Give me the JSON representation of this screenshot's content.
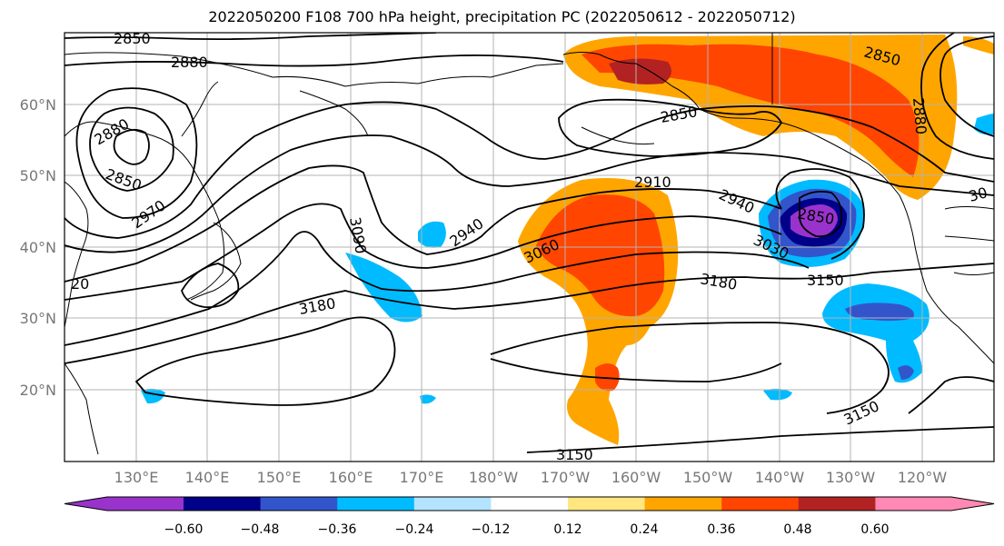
{
  "title": "2022050200 F108 700 hPa height, precipitation PC (2022050612 - 2022050712)",
  "lat_labels": [
    "60°N",
    "50°N",
    "40°N",
    "30°N",
    "20°N"
  ],
  "lon_labels": [
    "130°E",
    "140°E",
    "150°E",
    "160°E",
    "170°E",
    "180°W",
    "170°W",
    "160°W",
    "150°W",
    "140°W",
    "130°W",
    "120°W"
  ],
  "colorbar": {
    "ticks": [
      "−0.60",
      "−0.48",
      "−0.36",
      "−0.24",
      "−0.12",
      "0.12",
      "0.24",
      "0.36",
      "0.48",
      "0.60"
    ],
    "colors": [
      "#9933cc",
      "#000088",
      "#3355cc",
      "#00bbff",
      "#b3e3ff",
      "#ffffff",
      "#ffe680",
      "#ffa500",
      "#ff4500",
      "#b22222",
      "#ff88b4"
    ]
  },
  "contour_labels": [
    "2850",
    "2880",
    "2880",
    "2850",
    "2970",
    "3090",
    "2940",
    "3060",
    "2910",
    "2940",
    "2850",
    "3030",
    "2850",
    "2850",
    "2880",
    "30",
    "3180",
    "3150",
    "3180",
    "20",
    "3150",
    "3150"
  ]
}
